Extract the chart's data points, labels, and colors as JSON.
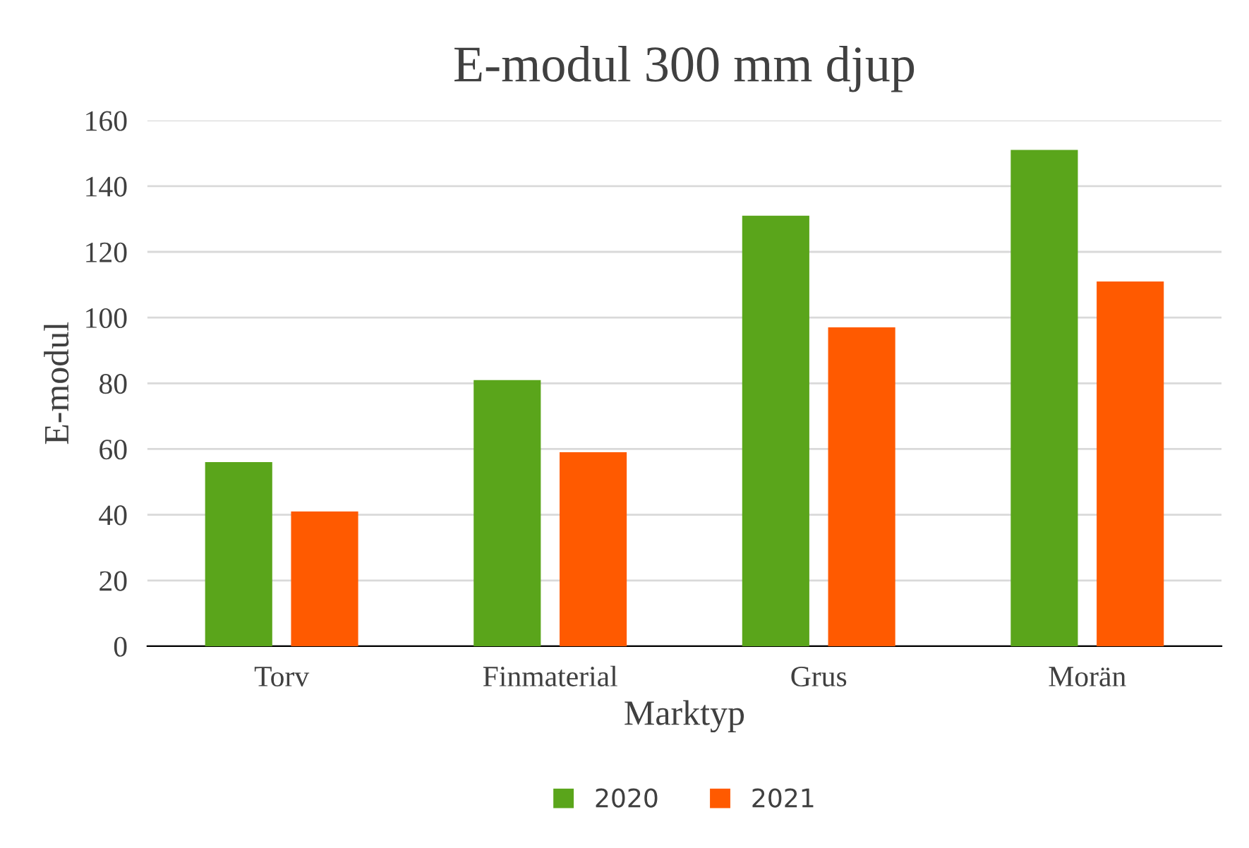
{
  "chart_data": {
    "type": "bar",
    "title": "E-modul 300 mm djup",
    "xlabel": "Marktyp",
    "ylabel": "E-modul",
    "categories": [
      "Torv",
      "Finmaterial",
      "Grus",
      "Morän"
    ],
    "series": [
      {
        "name": "2020",
        "color": "#5aa51b",
        "values": [
          56,
          81,
          131,
          151
        ]
      },
      {
        "name": "2021",
        "color": "#ff5a00",
        "values": [
          41,
          59,
          97,
          111
        ]
      }
    ],
    "ylim": [
      0,
      160
    ],
    "yticks": [
      0,
      20,
      40,
      60,
      80,
      100,
      120,
      140,
      160
    ],
    "grid": "y",
    "legend": "bottom"
  }
}
